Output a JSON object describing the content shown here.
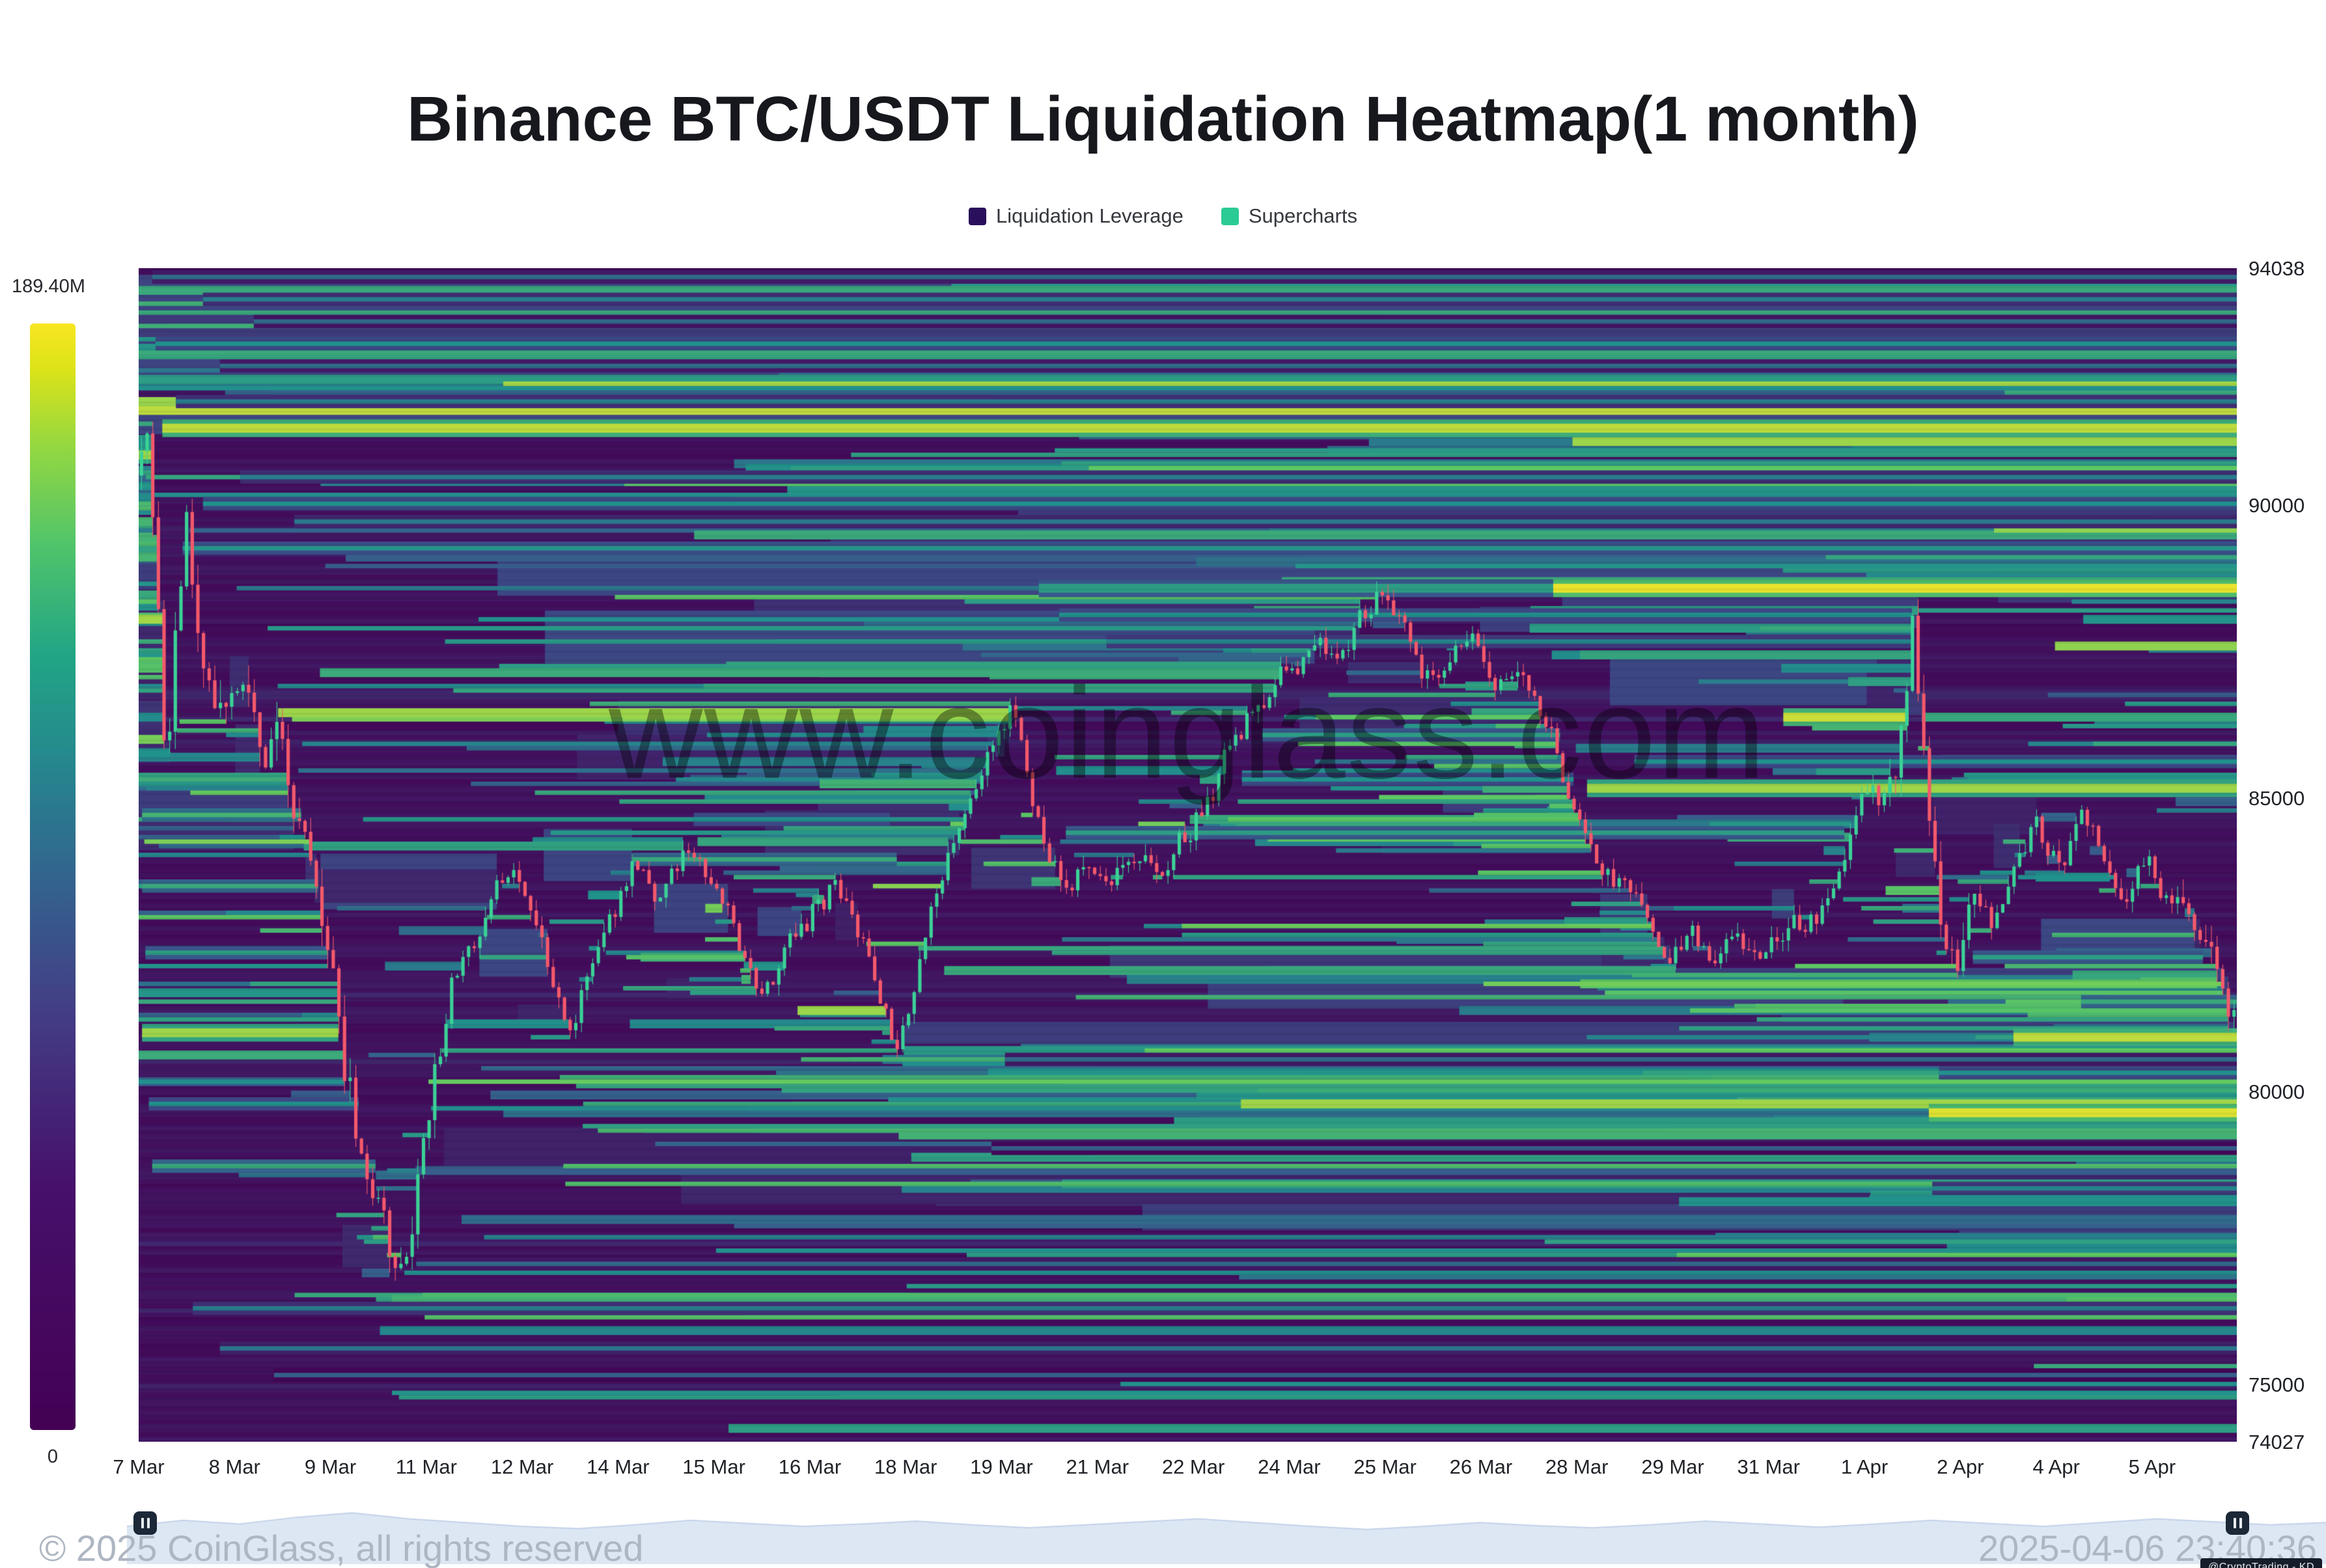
{
  "title": "Binance BTC/USDT Liquidation Heatmap(1 month)",
  "legend": {
    "items": [
      {
        "label": "Liquidation Leverage",
        "color": "#2a0f5c"
      },
      {
        "label": "Supercharts",
        "color": "#2bcb96"
      }
    ]
  },
  "colorbar": {
    "max_label": "189.40M",
    "min_label": "0"
  },
  "watermark": "www.coinglass.com",
  "y_axis": {
    "labels": [
      "94038",
      "90000",
      "85000",
      "80000",
      "75000",
      "74027"
    ]
  },
  "x_axis": {
    "labels": [
      "7 Mar",
      "8 Mar",
      "9 Mar",
      "11 Mar",
      "12 Mar",
      "14 Mar",
      "15 Mar",
      "16 Mar",
      "18 Mar",
      "19 Mar",
      "21 Mar",
      "22 Mar",
      "24 Mar",
      "25 Mar",
      "26 Mar",
      "28 Mar",
      "29 Mar",
      "31 Mar",
      "1 Apr",
      "2 Apr",
      "4 Apr",
      "5 Apr"
    ],
    "first_label_x": 213,
    "label_spacing_px": 147.28
  },
  "footer": {
    "copyright": "© 2025 CoinGlass, all rights reserved",
    "timestamp": "2025-04-06 23:40:36",
    "badge": "@CryptoTrading - KD"
  },
  "navigator": {
    "fill": "#dde7f4",
    "line": "#c3d2e8",
    "profile": [
      0.5,
      0.58,
      0.53,
      0.62,
      0.68,
      0.6,
      0.55,
      0.5,
      0.47,
      0.52,
      0.58,
      0.54,
      0.5,
      0.53,
      0.57,
      0.52,
      0.48,
      0.52,
      0.56,
      0.6,
      0.55,
      0.5,
      0.46,
      0.5,
      0.55,
      0.51,
      0.48,
      0.52,
      0.57,
      0.53,
      0.49,
      0.53,
      0.58,
      0.54,
      0.5,
      0.55,
      0.6,
      0.56,
      0.52,
      0.55
    ]
  },
  "chart_data": {
    "type": "heatmap",
    "overlay": "candlestick",
    "title": "Binance BTC/USDT Liquidation Heatmap(1 month)",
    "y_range": [
      74027,
      94038
    ],
    "y_ticks": [
      94038,
      90000,
      85000,
      80000,
      75000,
      74027
    ],
    "days_span": 31,
    "start_date_label": "7 Mar",
    "end_timestamp": "2025-04-06 23:40:36",
    "colorbar": {
      "min_label": "0",
      "max_label": "189.40M"
    },
    "candle_colors": {
      "up": "#3bd296",
      "down": "#f4596b"
    },
    "price_anchors": [
      [
        0,
        90500
      ],
      [
        0.15,
        91200
      ],
      [
        0.3,
        88600
      ],
      [
        0.45,
        85400
      ],
      [
        0.6,
        88000
      ],
      [
        0.75,
        89600
      ],
      [
        0.9,
        87600
      ],
      [
        1.2,
        86100
      ],
      [
        1.6,
        86700
      ],
      [
        1.9,
        85800
      ],
      [
        2.1,
        86300
      ],
      [
        2.35,
        84800
      ],
      [
        2.6,
        83300
      ],
      [
        2.85,
        81900
      ],
      [
        3.05,
        80300
      ],
      [
        3.3,
        79100
      ],
      [
        3.55,
        78200
      ],
      [
        3.8,
        77200
      ],
      [
        3.95,
        76950
      ],
      [
        4.1,
        78300
      ],
      [
        4.35,
        80100
      ],
      [
        4.65,
        81700
      ],
      [
        4.95,
        82700
      ],
      [
        5.3,
        83700
      ],
      [
        5.6,
        84100
      ],
      [
        5.9,
        83100
      ],
      [
        6.15,
        81900
      ],
      [
        6.4,
        80950
      ],
      [
        6.7,
        82200
      ],
      [
        7.0,
        83400
      ],
      [
        7.3,
        84200
      ],
      [
        7.7,
        83800
      ],
      [
        8.1,
        84400
      ],
      [
        8.5,
        84000
      ],
      [
        8.9,
        83000
      ],
      [
        9.2,
        82200
      ],
      [
        9.6,
        83000
      ],
      [
        10.0,
        83900
      ],
      [
        10.35,
        84200
      ],
      [
        10.7,
        83300
      ],
      [
        11.05,
        81900
      ],
      [
        11.25,
        81350
      ],
      [
        11.55,
        82700
      ],
      [
        11.85,
        84000
      ],
      [
        12.15,
        85200
      ],
      [
        12.45,
        85900
      ],
      [
        12.75,
        86500
      ],
      [
        12.95,
        87250
      ],
      [
        13.1,
        86200
      ],
      [
        13.35,
        84800
      ],
      [
        13.65,
        84200
      ],
      [
        14.0,
        84200
      ],
      [
        14.35,
        83700
      ],
      [
        14.7,
        84050
      ],
      [
        15.05,
        83750
      ],
      [
        15.4,
        84150
      ],
      [
        15.75,
        84500
      ],
      [
        16.1,
        85400
      ],
      [
        16.45,
        86300
      ],
      [
        16.8,
        86800
      ],
      [
        17.15,
        87400
      ],
      [
        17.5,
        87900
      ],
      [
        17.8,
        87300
      ],
      [
        18.1,
        87900
      ],
      [
        18.35,
        88350
      ],
      [
        18.6,
        87700
      ],
      [
        18.9,
        87100
      ],
      [
        19.2,
        86500
      ],
      [
        19.5,
        87050
      ],
      [
        19.8,
        87350
      ],
      [
        20.1,
        86800
      ],
      [
        20.4,
        87200
      ],
      [
        20.7,
        86400
      ],
      [
        20.95,
        85700
      ],
      [
        21.2,
        85000
      ],
      [
        21.45,
        84300
      ],
      [
        21.7,
        83800
      ],
      [
        22.0,
        83450
      ],
      [
        22.3,
        82800
      ],
      [
        22.6,
        82300
      ],
      [
        22.95,
        82650
      ],
      [
        23.3,
        82250
      ],
      [
        23.65,
        82500
      ],
      [
        24.0,
        82300
      ],
      [
        24.35,
        82550
      ],
      [
        24.7,
        82750
      ],
      [
        25.05,
        83400
      ],
      [
        25.35,
        84600
      ],
      [
        25.65,
        85350
      ],
      [
        25.9,
        85050
      ],
      [
        26.1,
        86300
      ],
      [
        26.25,
        88300
      ],
      [
        26.4,
        86300
      ],
      [
        26.55,
        83900
      ],
      [
        26.7,
        82700
      ],
      [
        26.9,
        82350
      ],
      [
        27.2,
        83350
      ],
      [
        27.5,
        83000
      ],
      [
        27.8,
        83650
      ],
      [
        28.1,
        84250
      ],
      [
        28.45,
        83700
      ],
      [
        28.75,
        84300
      ],
      [
        29.05,
        83600
      ],
      [
        29.35,
        83250
      ],
      [
        29.65,
        83650
      ],
      [
        29.95,
        83300
      ],
      [
        30.25,
        83000
      ],
      [
        30.5,
        82500
      ],
      [
        30.72,
        82000
      ],
      [
        30.95,
        81500
      ]
    ],
    "feature_bands": [
      [
        91300,
        0.35,
        31,
        0.9,
        2
      ],
      [
        90050,
        0.95,
        31,
        0.5,
        1
      ],
      [
        90450,
        1.5,
        31,
        0.42,
        1
      ],
      [
        89300,
        0.65,
        31,
        0.52,
        1
      ],
      [
        89700,
        2.3,
        31,
        0.4,
        1
      ],
      [
        91800,
        0.55,
        31,
        0.42,
        1
      ],
      [
        92350,
        1.2,
        31,
        0.36,
        1
      ],
      [
        92750,
        0.25,
        31,
        0.5,
        1
      ],
      [
        93150,
        1.7,
        31,
        0.34,
        1
      ],
      [
        93500,
        0.95,
        31,
        0.42,
        1
      ],
      [
        93850,
        0.2,
        31,
        0.36,
        1
      ],
      [
        88600,
        13.3,
        31,
        0.55,
        2
      ],
      [
        88600,
        20.9,
        31,
        0.97,
        2
      ],
      [
        88150,
        13.6,
        26.2,
        0.5,
        1
      ],
      [
        87700,
        14.3,
        26.2,
        0.45,
        1
      ],
      [
        85150,
        21.4,
        31,
        0.85,
        2
      ],
      [
        85600,
        22.1,
        31,
        0.5,
        1
      ],
      [
        86400,
        24.3,
        26.15,
        0.92,
        2
      ],
      [
        84400,
        13.7,
        25.2,
        0.55,
        1
      ],
      [
        83950,
        7.3,
        11.2,
        0.6,
        1
      ],
      [
        84650,
        8.2,
        11.1,
        0.5,
        1
      ],
      [
        86050,
        16.6,
        21.0,
        0.55,
        1
      ],
      [
        85350,
        16.3,
        21.2,
        0.5,
        1
      ],
      [
        81000,
        0.05,
        2.95,
        0.85,
        2
      ],
      [
        84700,
        0.05,
        2.4,
        0.65,
        1
      ],
      [
        83500,
        0.05,
        2.65,
        0.6,
        1
      ],
      [
        82400,
        0.1,
        2.8,
        0.55,
        1
      ],
      [
        78700,
        0.2,
        3.5,
        0.6,
        1
      ],
      [
        79800,
        0.15,
        3.25,
        0.5,
        1
      ],
      [
        76300,
        0.8,
        31,
        0.42,
        1
      ],
      [
        75650,
        1.2,
        31,
        0.38,
        1
      ],
      [
        75150,
        2.0,
        31,
        0.3,
        1
      ],
      [
        77050,
        4.1,
        31,
        0.35,
        1
      ],
      [
        79600,
        26.45,
        31,
        0.95,
        2
      ],
      [
        80900,
        27.7,
        31,
        0.9,
        2
      ],
      [
        81500,
        28.7,
        31,
        0.6,
        1
      ],
      [
        80300,
        26.6,
        31,
        0.5,
        1
      ],
      [
        78350,
        26.5,
        31,
        0.45,
        1
      ],
      [
        82300,
        27.1,
        30.5,
        0.55,
        1
      ],
      [
        79050,
        12.6,
        31,
        0.3,
        1
      ],
      [
        80550,
        12.8,
        31,
        0.35,
        1
      ]
    ],
    "render": {
      "seed": 11,
      "rows": 264,
      "n_lines": 680,
      "n_haze": 85,
      "steps_per_day": 12
    }
  }
}
